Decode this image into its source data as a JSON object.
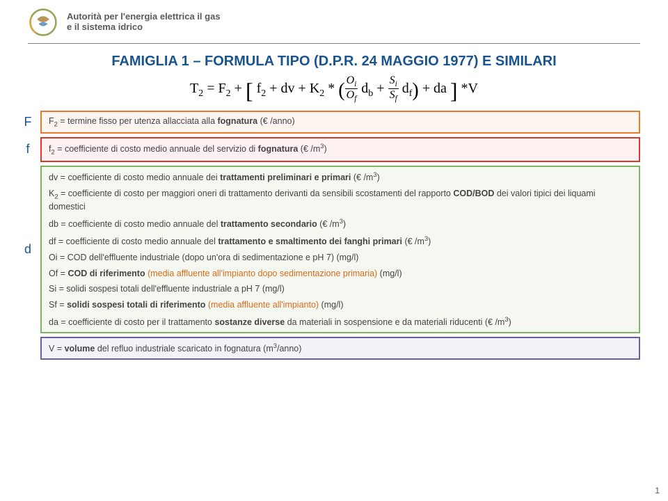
{
  "header": {
    "line1": "Autorità per l'energia elettrica il gas",
    "line2": "e il sistema idrico"
  },
  "title": "FAMIGLIA 1 – FORMULA TIPO (D.P.R. 24 MAGGIO 1977) E SIMILARI",
  "formula_html": "T<sub>2</sub> = F<sub>2</sub> + <span class='bigbracket'>[</span> f<sub>2</sub> + dv + K<sub>2</sub> * <span class='paren'>(</span><span class='frac'><span class='num'>O<sub>i</sub></span><span class='den'>O<sub>f</sub></span></span> d<sub>b</sub> + <span class='frac'><span class='num'>S<sub>i</sub></span><span class='den'>S<sub>f</sub></span></span> d<sub>f</sub><span class='paren'>)</span> + da <span class='bigbracket'>]</span> *V",
  "rows": {
    "F": {
      "label": "F",
      "text_html": "F<sub>2</sub> = termine fisso per utenza allacciata alla <b>fognatura</b> (€ /anno)"
    },
    "f": {
      "label": "f",
      "text_html": "f<sub>2</sub> = coefficiente di costo medio annuale del servizio di <b>fognatura</b> (€ /m<sup>3</sup>)"
    },
    "d": {
      "label": "d",
      "paras": [
        "dv = coefficiente di costo medio annuale dei <b>trattamenti preliminari e primari</b> (€ /m<sup>3</sup>)",
        "K<sub>2</sub> = coefficiente di costo per maggiori oneri di trattamento derivanti da sensibili scostamenti del rapporto <b>COD/BOD</b> dei valori tipici dei liquami domestici",
        "db = coefficiente di costo medio annuale del <b>trattamento secondario</b> (€ /m<sup>3</sup>)",
        "df = coefficiente di costo medio annuale del <b>trattamento e smaltimento dei fanghi primari</b> (€ /m<sup>3</sup>)",
        "Oi = COD dell'effluente industriale (dopo un'ora di sedimentazione e pH 7) (mg/l)",
        "Of = <b>COD di riferimento</b> <span class='orange-txt'>(media affluente all'impianto dopo sedimentazione primaria)</span> (mg/l)",
        "Si = solidi sospesi totali dell'effluente industriale a pH 7 (mg/l)",
        "Sf = <b>solidi sospesi totali di riferimento</b> <span class='orange-txt'>(media affluente all'impianto)</span> (mg/l)",
        "da = coefficiente di costo per il trattamento <b>sostanze diverse</b> da materiali in sospensione e da materiali riducenti (€ /m<sup>3</sup>)"
      ]
    },
    "V": {
      "text_html": "V = <b>volume</b> del refluo industriale scaricato in fognatura (m<sup>3</sup>/anno)"
    }
  },
  "page_number": "1",
  "colors": {
    "title": "#1a5490",
    "orange_border": "#e87b2e",
    "red_border": "#d93a2b",
    "green_border": "#7bb661",
    "purple_border": "#6b5fa8"
  }
}
